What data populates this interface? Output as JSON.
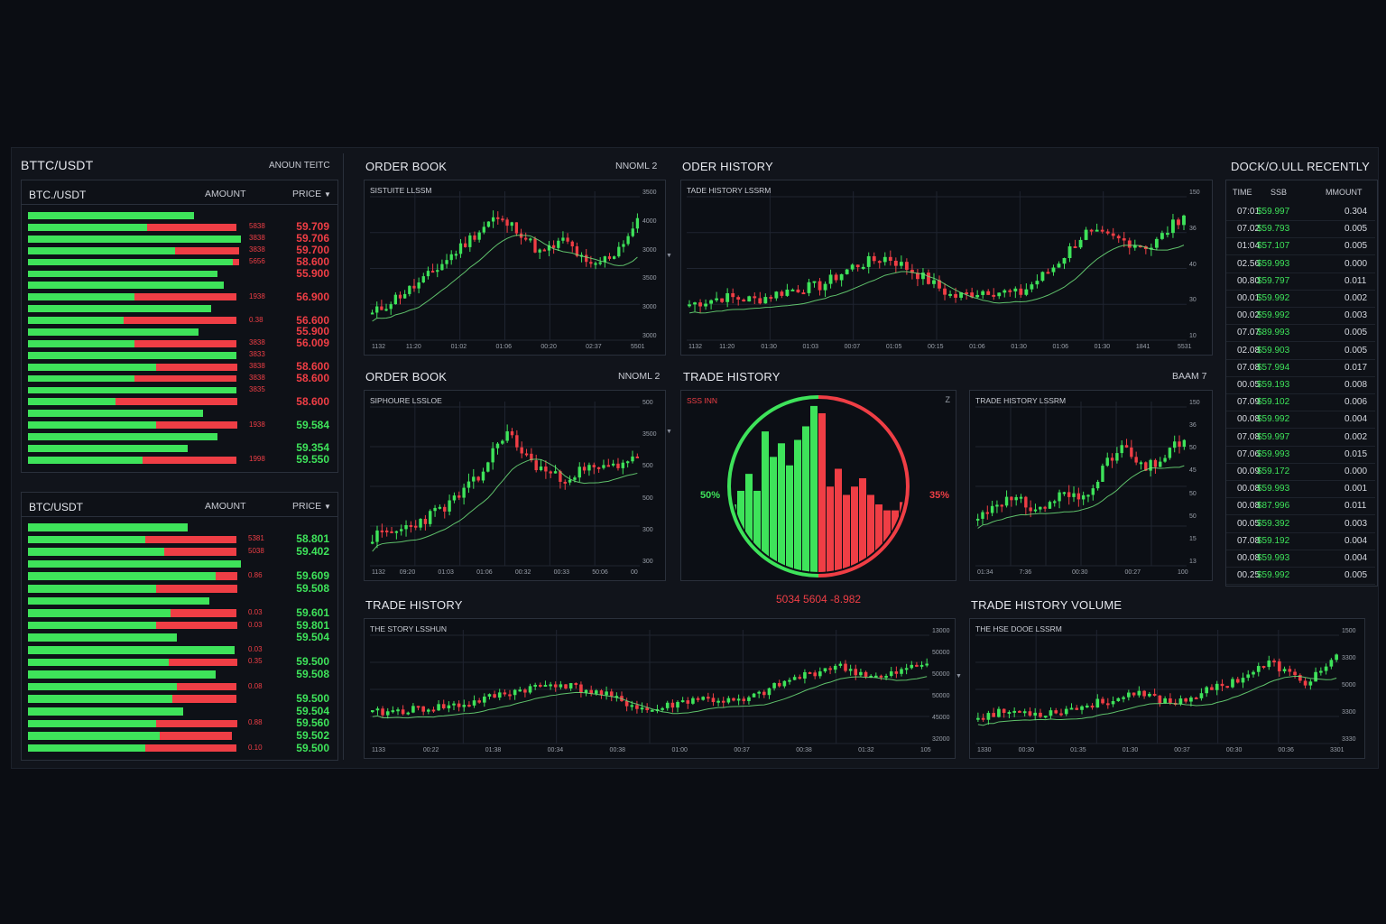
{
  "colors": {
    "bg": "#0b0d13",
    "panel": "#11141b",
    "up": "#3ee35a",
    "down": "#ef3e45",
    "grid": "#1f2430",
    "ma": "#6fe07a"
  },
  "left": {
    "pair": "BTTC/USDT",
    "amount_label": "ANOUN TEITC",
    "book1": {
      "pair": "BTC./USDT",
      "col_amount": "AMOUNT",
      "col_price": "PRICE",
      "rows": [
        {
          "g": 0.78,
          "r": 0,
          "amt": "",
          "price": "",
          "side": "sell"
        },
        {
          "g": 0.56,
          "r": 0.42,
          "amt": "5838",
          "price": "59.709",
          "side": "sell"
        },
        {
          "g": 1.0,
          "r": 0,
          "amt": "3838",
          "price": "59.706",
          "side": "sell"
        },
        {
          "g": 0.69,
          "r": 0.3,
          "amt": "3838",
          "price": "59.700",
          "side": "sell"
        },
        {
          "g": 0.96,
          "r": 0.03,
          "amt": "5656",
          "price": "58.600",
          "side": "sell"
        },
        {
          "g": 0.89,
          "r": 0,
          "amt": "",
          "price": "55.900",
          "side": "sell"
        },
        {
          "g": 0.92,
          "r": 0,
          "amt": "",
          "price": "",
          "side": "sell"
        },
        {
          "g": 0.5,
          "r": 0.48,
          "amt": "1938",
          "price": "56.900",
          "side": "sell"
        },
        {
          "g": 0.86,
          "r": 0,
          "amt": "",
          "price": "",
          "side": "sell"
        },
        {
          "g": 0.45,
          "r": 0.53,
          "amt": "0.38",
          "price": "56.600",
          "side": "sell"
        },
        {
          "g": 0.8,
          "r": 0,
          "amt": "",
          "price": "55.900",
          "side": "sell"
        },
        {
          "g": 0.5,
          "r": 0.48,
          "amt": "3838",
          "price": "56.009",
          "side": "sell"
        },
        {
          "g": 0.98,
          "r": 0,
          "amt": "3833",
          "price": "",
          "side": "sell"
        },
        {
          "g": 0.6,
          "r": 0.38,
          "amt": "3838",
          "price": "58.600",
          "side": "sell"
        },
        {
          "g": 0.5,
          "r": 0.48,
          "amt": "3838",
          "price": "58.600",
          "side": "sell"
        },
        {
          "g": 0.98,
          "r": 0,
          "amt": "3835",
          "price": "",
          "side": "sell"
        },
        {
          "g": 0.41,
          "r": 0.57,
          "amt": "",
          "price": "58.600",
          "side": "sell"
        },
        {
          "g": 0.82,
          "r": 0,
          "amt": "",
          "price": "",
          "side": "buy"
        },
        {
          "g": 0.6,
          "r": 0.38,
          "amt": "1938",
          "price": "59.584",
          "side": "buy"
        },
        {
          "g": 0.89,
          "r": 0,
          "amt": "",
          "price": "",
          "side": "buy"
        },
        {
          "g": 0.75,
          "r": 0,
          "amt": "",
          "price": "59.354",
          "side": "buy"
        },
        {
          "g": 0.54,
          "r": 0.44,
          "amt": "1998",
          "price": "59.550",
          "side": "buy"
        }
      ]
    },
    "book2": {
      "pair": "BTC/USDT",
      "col_amount": "AMOUNT",
      "col_price": "PRICE",
      "rows": [
        {
          "g": 0.75,
          "r": 0,
          "amt": "",
          "price": ""
        },
        {
          "g": 0.55,
          "r": 0.43,
          "amt": "5381",
          "price": "58.801"
        },
        {
          "g": 0.64,
          "r": 0.34,
          "amt": "5038",
          "price": "59.402"
        },
        {
          "g": 1.0,
          "r": 0,
          "amt": "",
          "price": ""
        },
        {
          "g": 0.88,
          "r": 0.1,
          "amt": "0.86",
          "price": "59.609"
        },
        {
          "g": 0.6,
          "r": 0.38,
          "amt": "",
          "price": "59.508"
        },
        {
          "g": 0.85,
          "r": 0,
          "amt": "",
          "price": ""
        },
        {
          "g": 0.67,
          "r": 0.31,
          "amt": "0.03",
          "price": "59.601"
        },
        {
          "g": 0.6,
          "r": 0.38,
          "amt": "0.03",
          "price": "59.801"
        },
        {
          "g": 0.7,
          "r": 0,
          "amt": "",
          "price": "59.504"
        },
        {
          "g": 0.97,
          "r": 0,
          "amt": "0.03",
          "price": ""
        },
        {
          "g": 0.66,
          "r": 0.32,
          "amt": "0.35",
          "price": "59.500"
        },
        {
          "g": 0.88,
          "r": 0,
          "amt": "",
          "price": "59.508"
        },
        {
          "g": 0.7,
          "r": 0.28,
          "amt": "0.08",
          "price": ""
        },
        {
          "g": 0.68,
          "r": 0.3,
          "amt": "",
          "price": "59.500"
        },
        {
          "g": 0.73,
          "r": 0,
          "amt": "",
          "price": "59.504"
        },
        {
          "g": 0.6,
          "r": 0.38,
          "amt": "0.88",
          "price": "59.560"
        },
        {
          "g": 0.62,
          "r": 0.34,
          "amt": "",
          "price": "59.502"
        },
        {
          "g": 0.55,
          "r": 0.43,
          "amt": "0.10",
          "price": "59.500"
        }
      ]
    }
  },
  "panels": {
    "ob1": {
      "title": "ORDER BOOK",
      "meta": "NNOML 2",
      "label": "SISTUITE LLSSM",
      "xt": [
        "1132",
        "11:20",
        "01:02",
        "01:06",
        "00:20",
        "02:37",
        "5501"
      ],
      "yt": [
        "3500",
        "4000",
        "3000",
        "3500",
        "3000",
        "3000"
      ]
    },
    "ob2": {
      "title": "ORDER BOOK",
      "meta": "NNOML 2",
      "label": "SIPHOURE LSSLOE",
      "xt": [
        "1132",
        "09:20",
        "01:03",
        "01:06",
        "00:32",
        "00:33",
        "50:06",
        "00"
      ],
      "yt": [
        "500",
        "3500",
        "500",
        "500",
        "300",
        "300"
      ]
    },
    "oh": {
      "title": "ODER HISTORY",
      "label": "TADE HISTORY LSSRM",
      "xt": [
        "1132",
        "11:20",
        "01:30",
        "01:03",
        "00:07",
        "01:05",
        "00:15",
        "01:06",
        "01:30",
        "01:06",
        "01:30",
        "1841",
        "5531"
      ],
      "yt": [
        "150",
        "36",
        "40",
        "30",
        "10"
      ]
    },
    "th_mid": {
      "title": "TRADE HISTORY",
      "meta": "BAAM 7",
      "label": "SSS INN",
      "mark": "Z",
      "left_pct": "50%",
      "right_pct": "35%",
      "readout": "5034 5604 -8.982"
    },
    "th_right": {
      "label": "TRADE HISTORY LSSRM",
      "xt": [
        "01:34",
        "7:36",
        "00:30",
        "00:27",
        "100"
      ],
      "yt": [
        "150",
        "36",
        "50",
        "45",
        "50",
        "50",
        "15",
        "13"
      ]
    },
    "th_bottom": {
      "title": "TRADE HISTORY",
      "label": "THE STORY LSSHUN",
      "xt": [
        "1133",
        "00:22",
        "01:38",
        "00:34",
        "00:38",
        "01:00",
        "00:37",
        "00:38",
        "01:32",
        "105"
      ],
      "yt": [
        "13000",
        "50000",
        "50000",
        "50000",
        "45000",
        "32000"
      ]
    },
    "vol": {
      "title": "TRADE HISTORY  VOLUME",
      "label": "THE HSE DOOE LSSRM",
      "xt": [
        "1330",
        "00:30",
        "01:35",
        "01:30",
        "00:37",
        "00:30",
        "00:36",
        "3301"
      ],
      "yt": [
        "1500",
        "3300",
        "5000",
        "3300",
        "3330"
      ]
    }
  },
  "recent": {
    "title": "DOCK/O.ULL RECENTLY",
    "headers": [
      "TIME",
      "SSB",
      "MMOUNT"
    ],
    "rows": [
      [
        "07:01",
        "$59.997",
        "0.304"
      ],
      [
        "07.02",
        "$59.793",
        "0.005"
      ],
      [
        "01:04",
        "$57.107",
        "0.005"
      ],
      [
        "02.56",
        "$59.993",
        "0.000"
      ],
      [
        "00.80",
        "$59.797",
        "0.011"
      ],
      [
        "00.01",
        "$59.992",
        "0.002"
      ],
      [
        "00.02",
        "$59.992",
        "0.003"
      ],
      [
        "07.07",
        "$89.993",
        "0.005"
      ],
      [
        "02.08",
        "$59.903",
        "0.005"
      ],
      [
        "07.08",
        "$57.994",
        "0.017"
      ],
      [
        "00.05",
        "$59.193",
        "0.008"
      ],
      [
        "07.09",
        "$59.102",
        "0.006"
      ],
      [
        "00.08",
        "$59.992",
        "0.004"
      ],
      [
        "07.08",
        "$59.997",
        "0.002"
      ],
      [
        "07.06",
        "$59.993",
        "0.015"
      ],
      [
        "00.09",
        "$59.172",
        "0.000"
      ],
      [
        "00.08",
        "$59.993",
        "0.001"
      ],
      [
        "00.08",
        "$87.996",
        "0.011"
      ],
      [
        "00.05",
        "$59.392",
        "0.003"
      ],
      [
        "07.08",
        "$59.192",
        "0.004"
      ],
      [
        "00.08",
        "$59.993",
        "0.004"
      ],
      [
        "00.25",
        "$59.992",
        "0.005"
      ]
    ]
  }
}
